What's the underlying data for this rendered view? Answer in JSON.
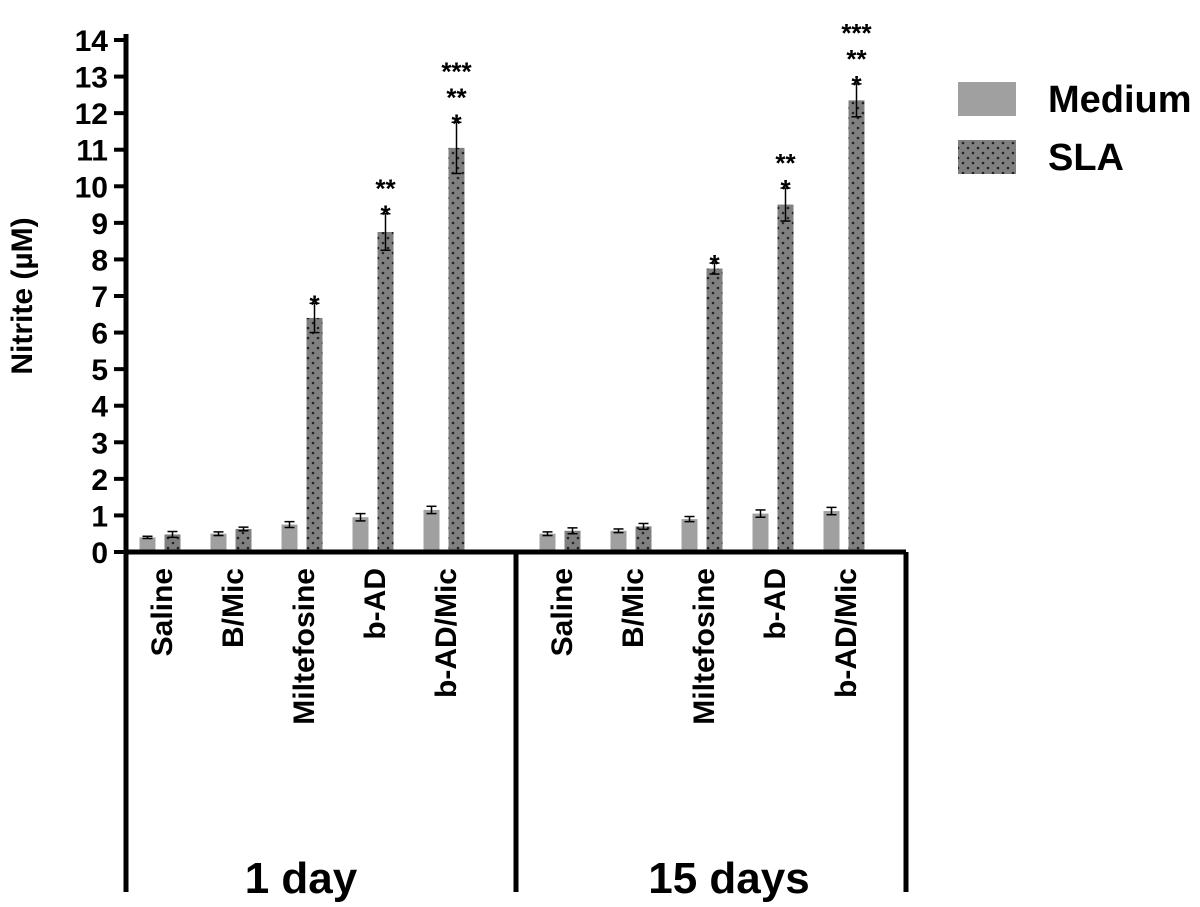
{
  "chart_data": {
    "type": "bar",
    "ylabel": "Nitrite (µM)",
    "ylim": [
      0,
      14
    ],
    "yticks": [
      "0",
      "1",
      "2",
      "3",
      "4",
      "5",
      "6",
      "7",
      "8",
      "9",
      "10",
      "11",
      "12",
      "13",
      "14"
    ],
    "grid": false,
    "legend_position": "top-right",
    "groups": [
      {
        "label": "1 day",
        "categories": [
          "Saline",
          "B/Mic",
          "Miltefosine",
          "b-AD",
          "b-AD/Mic"
        ],
        "series": [
          {
            "name": "Medium",
            "values": [
              0.4,
              0.5,
              0.75,
              0.95,
              1.15
            ],
            "errors": [
              0.03,
              0.05,
              0.08,
              0.1,
              0.1
            ],
            "annotations": [
              "",
              "",
              "",
              "",
              ""
            ]
          },
          {
            "name": "SLA",
            "values": [
              0.48,
              0.63,
              6.4,
              8.75,
              11.05
            ],
            "errors": [
              0.08,
              0.05,
              0.4,
              0.5,
              0.7
            ],
            "annotations": [
              "",
              "",
              "*",
              "*\n**",
              "*\n**\n***"
            ]
          }
        ]
      },
      {
        "label": "15 days",
        "categories": [
          "Saline",
          "B/Mic",
          "Miltefosine",
          "b-AD",
          "b-AD/Mic"
        ],
        "series": [
          {
            "name": "Medium",
            "values": [
              0.5,
              0.58,
              0.9,
              1.05,
              1.12
            ],
            "errors": [
              0.05,
              0.05,
              0.07,
              0.1,
              0.1
            ],
            "annotations": [
              "",
              "",
              "",
              "",
              ""
            ]
          },
          {
            "name": "SLA",
            "values": [
              0.58,
              0.7,
              7.75,
              9.5,
              12.35
            ],
            "errors": [
              0.08,
              0.08,
              0.15,
              0.45,
              0.45
            ],
            "annotations": [
              "",
              "",
              "*",
              "*\n**",
              "*\n**\n***"
            ]
          }
        ]
      }
    ]
  },
  "colors": {
    "medium": "#a0a0a0",
    "sla": "#808080",
    "sla_dots": "#222222",
    "axis": "#000000"
  }
}
